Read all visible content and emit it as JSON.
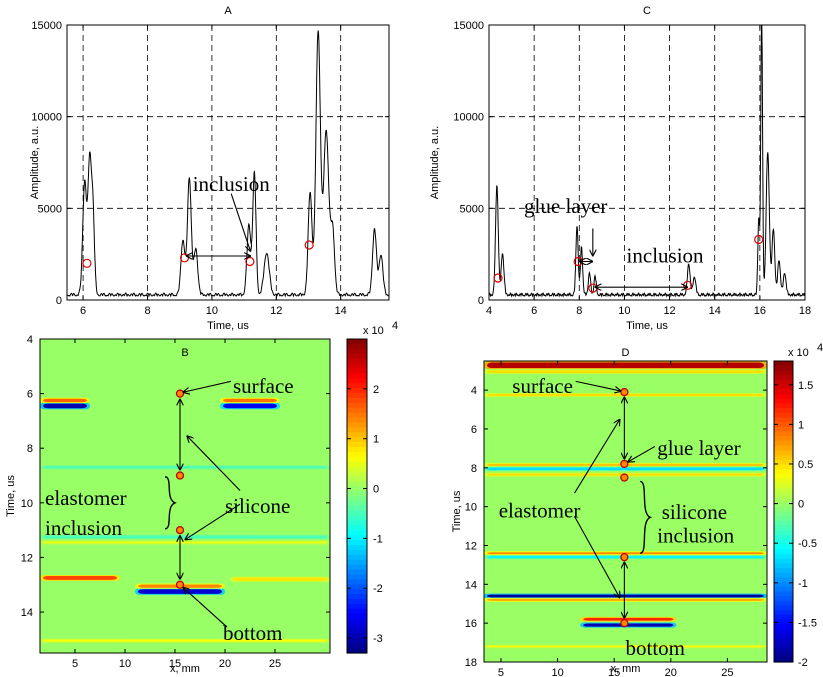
{
  "chart_data": [
    {
      "panel": "A",
      "type": "line",
      "title": "A",
      "xlabel": "Time, us",
      "ylabel": "Amplitude, a.u.",
      "xlim": [
        5.5,
        15.5
      ],
      "ylim": [
        0,
        15000
      ],
      "xticks": [
        6,
        8,
        10,
        12,
        14
      ],
      "yticks": [
        0,
        5000,
        10000,
        15000
      ],
      "grid": true,
      "peaks": [
        {
          "x": 6.05,
          "y": 6200,
          "w": 0.06
        },
        {
          "x": 6.2,
          "y": 6800,
          "w": 0.05
        },
        {
          "x": 6.3,
          "y": 4800,
          "w": 0.05
        },
        {
          "x": 9.1,
          "y": 3000,
          "w": 0.06
        },
        {
          "x": 9.3,
          "y": 6400,
          "w": 0.06
        },
        {
          "x": 9.5,
          "y": 2500,
          "w": 0.06
        },
        {
          "x": 11.15,
          "y": 3800,
          "w": 0.06
        },
        {
          "x": 11.32,
          "y": 6600,
          "w": 0.05
        },
        {
          "x": 11.7,
          "y": 2300,
          "w": 0.08
        },
        {
          "x": 13.05,
          "y": 5600,
          "w": 0.06
        },
        {
          "x": 13.3,
          "y": 14400,
          "w": 0.07
        },
        {
          "x": 13.55,
          "y": 9000,
          "w": 0.08
        },
        {
          "x": 13.75,
          "y": 3500,
          "w": 0.06
        },
        {
          "x": 15.05,
          "y": 3600,
          "w": 0.06
        },
        {
          "x": 15.25,
          "y": 2200,
          "w": 0.06
        }
      ],
      "markers": [
        {
          "x": 6.12,
          "y": 2000
        },
        {
          "x": 9.15,
          "y": 2300
        },
        {
          "x": 11.18,
          "y": 2100
        },
        {
          "x": 13.02,
          "y": 3000
        }
      ],
      "annotations": [
        {
          "text": "inclusion",
          "x": 10.6,
          "y": 6200
        }
      ],
      "arrows": [
        {
          "from": [
            9.2,
            2400
          ],
          "to": [
            11.2,
            2400
          ],
          "double": true
        },
        {
          "from": [
            10.6,
            5800
          ],
          "to": [
            11.2,
            2650
          ],
          "double": false
        }
      ]
    },
    {
      "panel": "C",
      "type": "line",
      "title": "C",
      "xlabel": "Time, us",
      "ylabel": "Amplitude, a.u.",
      "xlim": [
        4,
        18
      ],
      "ylim": [
        0,
        15000
      ],
      "xticks": [
        4,
        6,
        8,
        10,
        12,
        14,
        16,
        18
      ],
      "yticks": [
        0,
        5000,
        10000,
        15000
      ],
      "grid": true,
      "peaks": [
        {
          "x": 4.35,
          "y": 6000,
          "w": 0.06
        },
        {
          "x": 4.6,
          "y": 2300,
          "w": 0.06
        },
        {
          "x": 7.9,
          "y": 3800,
          "w": 0.05
        },
        {
          "x": 8.1,
          "y": 2600,
          "w": 0.05
        },
        {
          "x": 8.45,
          "y": 1200,
          "w": 0.05
        },
        {
          "x": 8.7,
          "y": 1000,
          "w": 0.05
        },
        {
          "x": 12.85,
          "y": 1700,
          "w": 0.06
        },
        {
          "x": 13.1,
          "y": 1000,
          "w": 0.06
        },
        {
          "x": 15.95,
          "y": 4200,
          "w": 0.04
        },
        {
          "x": 16.08,
          "y": 15200,
          "w": 0.04
        },
        {
          "x": 16.35,
          "y": 7800,
          "w": 0.07
        },
        {
          "x": 16.6,
          "y": 3600,
          "w": 0.06
        },
        {
          "x": 16.85,
          "y": 1900,
          "w": 0.06
        },
        {
          "x": 17.1,
          "y": 1200,
          "w": 0.06
        }
      ],
      "markers": [
        {
          "x": 4.4,
          "y": 1200
        },
        {
          "x": 7.95,
          "y": 2100
        },
        {
          "x": 8.6,
          "y": 650
        },
        {
          "x": 12.8,
          "y": 800
        },
        {
          "x": 15.95,
          "y": 3300
        }
      ],
      "annotations": [
        {
          "text": "glue layer",
          "x": 7.4,
          "y": 5000
        },
        {
          "text": "inclusion",
          "x": 11.8,
          "y": 2300
        }
      ],
      "arrows": [
        {
          "from": [
            8.6,
            3900
          ],
          "to": [
            8.6,
            2400
          ],
          "double": false
        },
        {
          "from": [
            8.0,
            2100
          ],
          "to": [
            8.6,
            2100
          ],
          "double": true
        },
        {
          "from": [
            8.7,
            700
          ],
          "to": [
            12.8,
            700
          ],
          "double": true
        }
      ]
    },
    {
      "panel": "B",
      "type": "heatmap",
      "title": "B",
      "xlabel": "x, mm",
      "ylabel": "Time, us",
      "xlim": [
        1.5,
        30.5
      ],
      "ylim": [
        4,
        15.5
      ],
      "xticks": [
        5,
        10,
        15,
        20,
        25
      ],
      "yticks": [
        4,
        6,
        8,
        10,
        12,
        14
      ],
      "colorbar": {
        "min": -3.3,
        "max": 3.0,
        "ticks": [
          2,
          1,
          0,
          -1,
          -2,
          -3
        ],
        "exponent": "x 10",
        "power": "4"
      },
      "bands": [
        {
          "x1": 1.5,
          "x2": 6.5,
          "y": 6.45,
          "value": -3.0,
          "h": 0.17
        },
        {
          "x1": 1.5,
          "x2": 6.5,
          "y": 6.25,
          "value": 1.6,
          "h": 0.12
        },
        {
          "x1": 19.5,
          "x2": 25.5,
          "y": 6.45,
          "value": -2.6,
          "h": 0.17
        },
        {
          "x1": 19.5,
          "x2": 25.5,
          "y": 6.25,
          "value": 1.5,
          "h": 0.12
        },
        {
          "x1": 11.0,
          "x2": 20.0,
          "y": 13.25,
          "value": -2.8,
          "h": 0.17
        },
        {
          "x1": 11.0,
          "x2": 20.0,
          "y": 13.05,
          "value": 1.4,
          "h": 0.12
        },
        {
          "x1": 1.5,
          "x2": 9.5,
          "y": 12.75,
          "value": 1.8,
          "h": 0.14
        },
        {
          "x1": 20.5,
          "x2": 30.5,
          "y": 12.8,
          "value": 0.8,
          "h": 0.12
        },
        {
          "x1": 1.5,
          "x2": 30.5,
          "y": 8.7,
          "value": -0.5,
          "h": 0.08
        },
        {
          "x1": 1.5,
          "x2": 30.5,
          "y": 11.25,
          "value": -0.5,
          "h": 0.1
        },
        {
          "x1": 1.5,
          "x2": 30.5,
          "y": 11.45,
          "value": 0.5,
          "h": 0.08
        },
        {
          "x1": 1.5,
          "x2": 30.5,
          "y": 15.05,
          "value": 0.6,
          "h": 0.08
        }
      ],
      "markers": [
        {
          "x": 15.5,
          "y": 6.0
        },
        {
          "x": 15.5,
          "y": 9.0
        },
        {
          "x": 15.5,
          "y": 11.0
        },
        {
          "x": 15.5,
          "y": 13.0
        }
      ],
      "annotations": [
        {
          "text": "surface",
          "x": 20.8,
          "y": 5.8
        },
        {
          "text": "silicone",
          "x": 20.0,
          "y": 10.2
        },
        {
          "text": "elastomer",
          "x": 2.0,
          "y": 9.9
        },
        {
          "text": "inclusion",
          "x": 2.0,
          "y": 11.0
        },
        {
          "text": "bottom",
          "x": 19.8,
          "y": 14.85
        }
      ],
      "arrows": [
        {
          "from": [
            15.5,
            6.2
          ],
          "to": [
            15.5,
            8.8
          ],
          "double": true
        },
        {
          "from": [
            15.5,
            11.2
          ],
          "to": [
            15.5,
            12.8
          ],
          "double": true
        },
        {
          "from": [
            20.6,
            5.55
          ],
          "to": [
            15.8,
            5.95
          ],
          "double": false
        },
        {
          "from": [
            21.5,
            9.55
          ],
          "to": [
            16.2,
            7.55
          ],
          "double": false
        },
        {
          "from": [
            21.5,
            10.05
          ],
          "to": [
            16.0,
            11.35
          ],
          "double": false
        },
        {
          "from": [
            20.2,
            14.55
          ],
          "to": [
            15.8,
            13.1
          ],
          "double": false
        }
      ],
      "brace": {
        "x": 14.0,
        "y1": 9.05,
        "y2": 10.95
      }
    },
    {
      "panel": "D",
      "type": "heatmap",
      "title": "D",
      "xlabel": "x, mm",
      "ylabel": "Time, us",
      "xlim": [
        3.5,
        28.5
      ],
      "ylim": [
        2.5,
        18
      ],
      "xticks": [
        5,
        10,
        15,
        20,
        25
      ],
      "yticks": [
        4,
        6,
        8,
        10,
        12,
        14,
        16,
        18
      ],
      "colorbar": {
        "min": -2.0,
        "max": 1.8,
        "ticks": [
          1.5,
          1,
          0.5,
          0,
          -0.5,
          -1,
          -1.5,
          -2
        ],
        "exponent": "x 10",
        "power": "4"
      },
      "bands": [
        {
          "x1": 3.5,
          "x2": 28.5,
          "y": 2.72,
          "value": 1.6,
          "h": 0.28
        },
        {
          "x1": 3.5,
          "x2": 28.5,
          "y": 3.05,
          "value": 0.5,
          "h": 0.12
        },
        {
          "x1": 3.5,
          "x2": 28.5,
          "y": 4.25,
          "value": 0.5,
          "h": 0.1
        },
        {
          "x1": 3.5,
          "x2": 28.5,
          "y": 7.85,
          "value": 0.6,
          "h": 0.1
        },
        {
          "x1": 3.5,
          "x2": 28.5,
          "y": 8.05,
          "value": -0.7,
          "h": 0.12
        },
        {
          "x1": 3.5,
          "x2": 28.5,
          "y": 8.35,
          "value": 0.5,
          "h": 0.1
        },
        {
          "x1": 3.5,
          "x2": 28.5,
          "y": 12.4,
          "value": 0.8,
          "h": 0.1
        },
        {
          "x1": 3.5,
          "x2": 28.5,
          "y": 12.6,
          "value": -0.6,
          "h": 0.1
        },
        {
          "x1": 3.5,
          "x2": 28.5,
          "y": 14.6,
          "value": -1.9,
          "h": 0.14
        },
        {
          "x1": 3.5,
          "x2": 28.5,
          "y": 14.8,
          "value": 0.7,
          "h": 0.1
        },
        {
          "x1": 12.0,
          "x2": 20.5,
          "y": 16.1,
          "value": -1.8,
          "h": 0.16
        },
        {
          "x1": 12.0,
          "x2": 20.5,
          "y": 15.8,
          "value": 1.2,
          "h": 0.14
        },
        {
          "x1": 3.5,
          "x2": 28.5,
          "y": 17.2,
          "value": 0.4,
          "h": 0.08
        }
      ],
      "markers": [
        {
          "x": 15.9,
          "y": 4.1
        },
        {
          "x": 15.9,
          "y": 7.8
        },
        {
          "x": 15.9,
          "y": 8.5
        },
        {
          "x": 15.9,
          "y": 12.6
        },
        {
          "x": 15.9,
          "y": 16.0
        }
      ],
      "annotations": [
        {
          "text": "surface",
          "x": 6.0,
          "y": 3.9
        },
        {
          "text": "glue layer",
          "x": 18.8,
          "y": 7.1
        },
        {
          "text": "elastomer",
          "x": 4.8,
          "y": 10.3
        },
        {
          "text": "silicone",
          "x": 19.2,
          "y": 10.4
        },
        {
          "text": "inclusion",
          "x": 18.8,
          "y": 11.6
        },
        {
          "text": "bottom",
          "x": 16.0,
          "y": 17.4
        }
      ],
      "arrows": [
        {
          "from": [
            15.9,
            4.35
          ],
          "to": [
            15.9,
            7.55
          ],
          "double": true
        },
        {
          "from": [
            15.9,
            12.85
          ],
          "to": [
            15.9,
            15.75
          ],
          "double": true
        },
        {
          "from": [
            11.6,
            3.55
          ],
          "to": [
            15.6,
            4.05
          ],
          "double": false
        },
        {
          "from": [
            18.6,
            6.9
          ],
          "to": [
            16.2,
            7.7
          ],
          "double": false
        },
        {
          "from": [
            11.5,
            9.3
          ],
          "to": [
            15.5,
            5.5
          ],
          "double": false
        },
        {
          "from": [
            11.5,
            10.5
          ],
          "to": [
            15.5,
            14.7
          ],
          "double": false
        }
      ],
      "brace": {
        "x": 17.3,
        "y1": 8.7,
        "y2": 12.4
      }
    }
  ]
}
